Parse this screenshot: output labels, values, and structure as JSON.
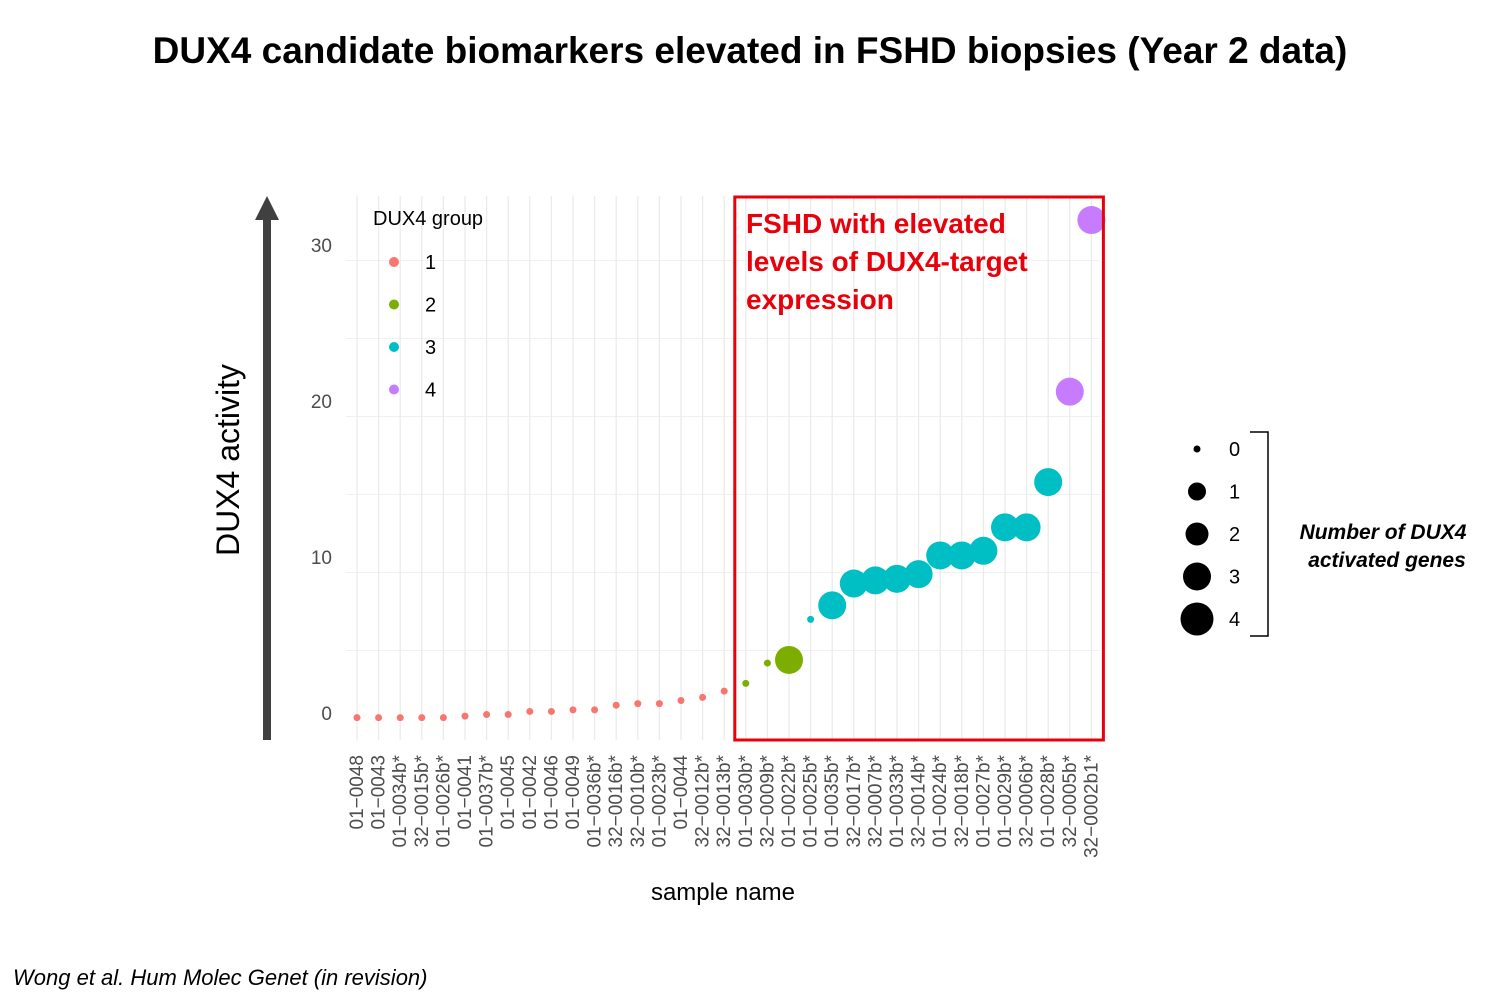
{
  "title": "DUX4 candidate biomarkers elevated in FSHD biopsies (Year 2 data)",
  "citation": "Wong et al. Hum Molec Genet (in revision)",
  "chart_data": {
    "type": "scatter",
    "xlabel": "sample name",
    "ylabel": "DUX4 activity",
    "ylim": [
      -1,
      33
    ],
    "yticks": [
      0,
      10,
      20,
      30
    ],
    "grid": true,
    "categories": [
      "01−0048",
      "01−0043",
      "01−0034b*",
      "32−0015b*",
      "01−0026b*",
      "01−0041",
      "01−0037b*",
      "01−0045",
      "01−0042",
      "01−0046",
      "01−0049",
      "01−0036b*",
      "32−0016b*",
      "32−0010b*",
      "01−0023b*",
      "01−0044",
      "32−0012b*",
      "32−0013b*",
      "01−0030b*",
      "32−0009b*",
      "01−0022b*",
      "01−0025b*",
      "01−0035b*",
      "32−0017b*",
      "32−0007b*",
      "01−0033b*",
      "32−0014b*",
      "01−0024b*",
      "32−0018b*",
      "01−0027b*",
      "01−0029b*",
      "32−0006b*",
      "01−0028b*",
      "32−0005b*",
      "32−0002b1*"
    ],
    "values": [
      -0.3,
      -0.3,
      -0.3,
      -0.3,
      -0.3,
      -0.2,
      -0.1,
      -0.1,
      0.1,
      0.1,
      0.2,
      0.2,
      0.5,
      0.6,
      0.6,
      0.8,
      1.0,
      1.4,
      1.9,
      3.2,
      3.4,
      6.0,
      6.9,
      8.3,
      8.5,
      8.6,
      8.9,
      10.1,
      10.1,
      10.4,
      11.9,
      11.9,
      14.8,
      20.6,
      31.6
    ],
    "groups": [
      1,
      1,
      1,
      1,
      1,
      1,
      1,
      1,
      1,
      1,
      1,
      1,
      1,
      1,
      1,
      1,
      1,
      1,
      2,
      2,
      2,
      3,
      3,
      3,
      3,
      3,
      3,
      3,
      3,
      3,
      3,
      3,
      3,
      4,
      4
    ],
    "activated_genes": [
      0,
      0,
      0,
      0,
      0,
      0,
      0,
      0,
      0,
      0,
      0,
      0,
      0,
      0,
      0,
      0,
      0,
      0,
      0,
      0,
      3,
      0,
      3,
      3,
      3,
      3,
      3,
      3,
      3,
      3,
      3,
      3,
      3,
      3,
      3
    ],
    "legend": {
      "group_title": "DUX4 group",
      "groups": [
        {
          "label": "1",
          "color": "#f8766d"
        },
        {
          "label": "2",
          "color": "#7cae00"
        },
        {
          "label": "3",
          "color": "#00bfc4"
        },
        {
          "label": "4",
          "color": "#c77cff"
        }
      ],
      "size_title_lines": [
        "Number of DUX4",
        "activated genes"
      ],
      "sizes": [
        "0",
        "1",
        "2",
        "3",
        "4"
      ]
    },
    "annotation": {
      "lines": [
        "FSHD with elevated",
        "levels of DUX4-target",
        "expression"
      ],
      "color": "#e8000b",
      "from_category": 18,
      "to_category": 34
    }
  }
}
